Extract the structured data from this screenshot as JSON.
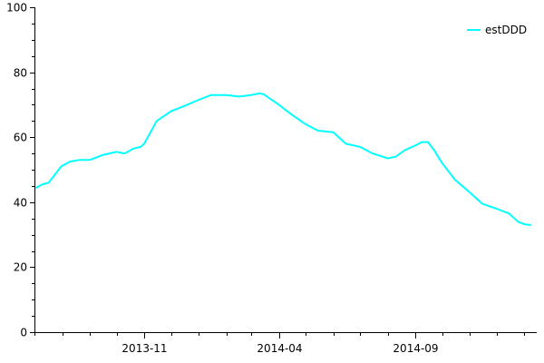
{
  "chart_data": {
    "type": "line",
    "title": "",
    "xlabel": "",
    "ylabel": "",
    "ylim": [
      0,
      100
    ],
    "y_ticks": [
      0,
      20,
      40,
      60,
      80,
      100
    ],
    "x_start": "2013-07-01",
    "x_end": "2015-01-15",
    "x_major_ticks": [
      "2013-11",
      "2014-04",
      "2014-09"
    ],
    "x_minor_ticks": [
      "2013-07",
      "2013-08",
      "2013-09",
      "2013-10",
      "2013-12",
      "2014-01",
      "2014-02",
      "2014-03",
      "2014-05",
      "2014-06",
      "2014-07",
      "2014-08",
      "2014-10",
      "2014-11",
      "2014-12",
      "2015-01"
    ],
    "grid": false,
    "legend_position": "top-right",
    "series": [
      {
        "name": "estDDD",
        "color": "#00ffff",
        "x": [
          "2013-07-03",
          "2013-07-10",
          "2013-07-17",
          "2013-07-24",
          "2013-07-31",
          "2013-08-10",
          "2013-08-20",
          "2013-09-01",
          "2013-09-15",
          "2013-10-01",
          "2013-10-10",
          "2013-10-20",
          "2013-10-28",
          "2013-11-01",
          "2013-11-05",
          "2013-11-15",
          "2013-12-01",
          "2013-12-15",
          "2014-01-01",
          "2014-01-15",
          "2014-02-01",
          "2014-02-15",
          "2014-03-01",
          "2014-03-10",
          "2014-03-15",
          "2014-04-01",
          "2014-04-15",
          "2014-05-01",
          "2014-05-15",
          "2014-06-01",
          "2014-06-15",
          "2014-07-01",
          "2014-07-15",
          "2014-08-01",
          "2014-08-10",
          "2014-08-20",
          "2014-09-01",
          "2014-09-08",
          "2014-09-15",
          "2014-09-22",
          "2014-10-01",
          "2014-10-15",
          "2014-11-01",
          "2014-11-15",
          "2014-12-01",
          "2014-12-15",
          "2014-12-25",
          "2015-01-01",
          "2015-01-08"
        ],
        "y": [
          44.5,
          45.5,
          46,
          48.5,
          51,
          52.5,
          53,
          53,
          54.5,
          55.5,
          55,
          56.5,
          57,
          58,
          60,
          65,
          68,
          69.5,
          71.5,
          73,
          73,
          72.5,
          73,
          73.5,
          73.2,
          70,
          67,
          64,
          62,
          61.5,
          58,
          57,
          55,
          53.5,
          54,
          56,
          57.5,
          58.5,
          58.5,
          56,
          52,
          47,
          43,
          39.5,
          38,
          36.5,
          34,
          33.2,
          33
        ]
      }
    ]
  }
}
